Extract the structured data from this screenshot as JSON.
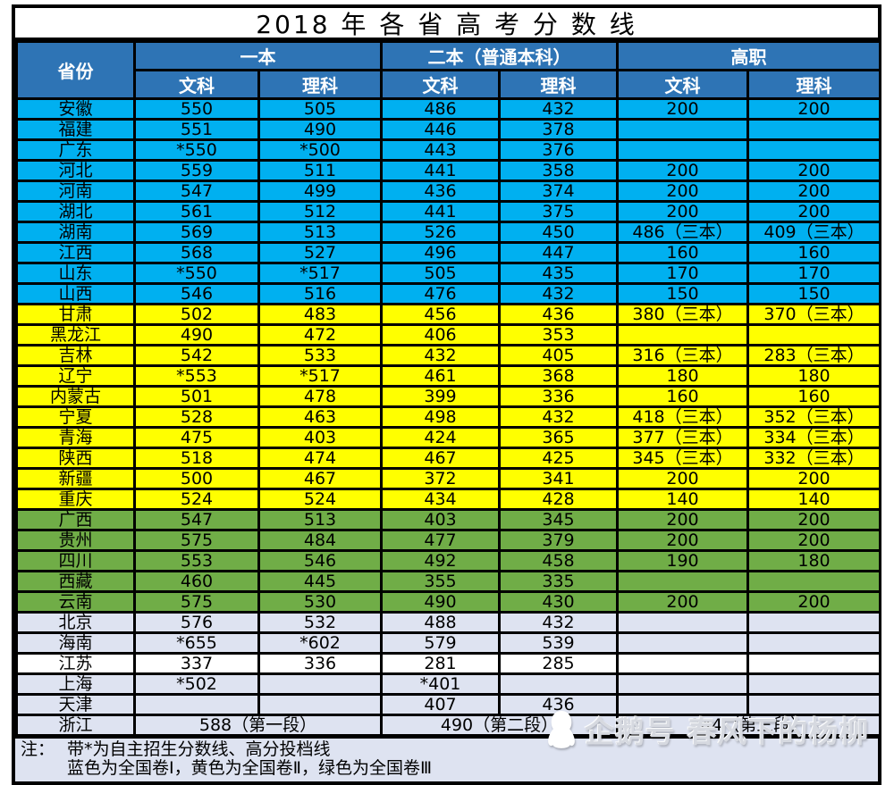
{
  "chart_data": {
    "type": "table",
    "title": "2018 年 各 省 高 考 分 数 线",
    "column_groups": [
      {
        "label": "一本",
        "subs": [
          "文科",
          "理科"
        ]
      },
      {
        "label": "二本（普通本科）",
        "subs": [
          "文科",
          "理科"
        ]
      },
      {
        "label": "高职",
        "subs": [
          "文科",
          "理科"
        ]
      }
    ],
    "columns": [
      "省份",
      "一本文科",
      "一本理科",
      "二本文科",
      "二本理科",
      "高职文科",
      "高职理科"
    ],
    "rows": [
      {
        "province": "安徽",
        "color": "blue",
        "cells": [
          "550",
          "505",
          "486",
          "432",
          "200",
          "200"
        ]
      },
      {
        "province": "福建",
        "color": "blue",
        "cells": [
          "551",
          "490",
          "446",
          "378",
          "",
          ""
        ]
      },
      {
        "province": "广东",
        "color": "blue",
        "cells": [
          "*550",
          "*500",
          "443",
          "376",
          "",
          ""
        ]
      },
      {
        "province": "河北",
        "color": "blue",
        "cells": [
          "559",
          "511",
          "441",
          "358",
          "200",
          "200"
        ]
      },
      {
        "province": "河南",
        "color": "blue",
        "cells": [
          "547",
          "499",
          "436",
          "374",
          "200",
          "200"
        ]
      },
      {
        "province": "湖北",
        "color": "blue",
        "cells": [
          "561",
          "512",
          "441",
          "375",
          "200",
          "200"
        ]
      },
      {
        "province": "湖南",
        "color": "blue",
        "cells": [
          "569",
          "513",
          "526",
          "450",
          "486（三本）",
          "409（三本）"
        ]
      },
      {
        "province": "江西",
        "color": "blue",
        "cells": [
          "568",
          "527",
          "496",
          "447",
          "160",
          "160"
        ]
      },
      {
        "province": "山东",
        "color": "blue",
        "cells": [
          "*550",
          "*517",
          "505",
          "435",
          "170",
          "170"
        ]
      },
      {
        "province": "山西",
        "color": "blue",
        "cells": [
          "546",
          "516",
          "476",
          "432",
          "150",
          "150"
        ]
      },
      {
        "province": "甘肃",
        "color": "yellow",
        "cells": [
          "502",
          "483",
          "456",
          "436",
          "380（三本）",
          "370（三本）"
        ]
      },
      {
        "province": "黑龙江",
        "color": "yellow",
        "cells": [
          "490",
          "472",
          "406",
          "353",
          "",
          ""
        ]
      },
      {
        "province": "吉林",
        "color": "yellow",
        "cells": [
          "542",
          "533",
          "432",
          "405",
          "316（三本）",
          "283（三本）"
        ]
      },
      {
        "province": "辽宁",
        "color": "yellow",
        "cells": [
          "*553",
          "*517",
          "461",
          "368",
          "180",
          "180"
        ]
      },
      {
        "province": "内蒙古",
        "color": "yellow",
        "cells": [
          "501",
          "478",
          "399",
          "336",
          "160",
          "160"
        ]
      },
      {
        "province": "宁夏",
        "color": "yellow",
        "cells": [
          "528",
          "463",
          "498",
          "432",
          "418（三本）",
          "352（三本）"
        ]
      },
      {
        "province": "青海",
        "color": "yellow",
        "cells": [
          "475",
          "403",
          "424",
          "365",
          "377（三本）",
          "334（三本）"
        ]
      },
      {
        "province": "陕西",
        "color": "yellow",
        "cells": [
          "518",
          "474",
          "467",
          "425",
          "345（三本）",
          "332（三本）"
        ]
      },
      {
        "province": "新疆",
        "color": "yellow",
        "cells": [
          "500",
          "467",
          "372",
          "341",
          "200",
          "200"
        ]
      },
      {
        "province": "重庆",
        "color": "yellow",
        "cells": [
          "524",
          "524",
          "434",
          "428",
          "140",
          "140"
        ]
      },
      {
        "province": "广西",
        "color": "green",
        "cells": [
          "547",
          "513",
          "403",
          "345",
          "200",
          "200"
        ]
      },
      {
        "province": "贵州",
        "color": "green",
        "cells": [
          "575",
          "484",
          "477",
          "379",
          "200",
          "200"
        ]
      },
      {
        "province": "四川",
        "color": "green",
        "cells": [
          "553",
          "546",
          "492",
          "458",
          "190",
          "180"
        ]
      },
      {
        "province": "西藏",
        "color": "green",
        "cells": [
          "460",
          "445",
          "355",
          "335",
          "",
          ""
        ]
      },
      {
        "province": "云南",
        "color": "green",
        "cells": [
          "575",
          "530",
          "490",
          "430",
          "200",
          "200"
        ]
      },
      {
        "province": "北京",
        "color": "light",
        "cells": [
          "576",
          "532",
          "488",
          "432",
          "",
          ""
        ]
      },
      {
        "province": "海南",
        "color": "light",
        "cells": [
          "*655",
          "*602",
          "579",
          "539",
          "",
          ""
        ]
      },
      {
        "province": "江苏",
        "color": "white",
        "cells": [
          "337",
          "336",
          "281",
          "285",
          "",
          ""
        ]
      },
      {
        "province": "上海",
        "color": "light",
        "cells": [
          "*502",
          "",
          "*401",
          "",
          "",
          ""
        ]
      },
      {
        "province": "天津",
        "color": "light",
        "cells": [
          "",
          "",
          "407",
          "436",
          "",
          ""
        ]
      },
      {
        "province": "浙江",
        "color": "light",
        "spans": [
          {
            "text": "588（第一段）",
            "span": 2
          },
          {
            "text": "490（第二段）",
            "span": 2
          },
          {
            "text": "344（第三段）",
            "span": 2
          }
        ]
      }
    ],
    "row_color_legend": {
      "blue": "全国卷Ⅰ",
      "yellow": "全国卷Ⅱ",
      "green": "全国卷Ⅲ"
    }
  },
  "header": {
    "province": "省份"
  },
  "colors": {
    "header_blue": "#2E74B5",
    "row_blue": "#00B0F0",
    "row_yellow": "#FFFF00",
    "row_green": "#70AD47",
    "row_light": "#DEE3F1",
    "row_white": "#FFFFFF",
    "border": "#000000"
  },
  "note": {
    "prefix": "注：",
    "line1": "带*为自主招生分数线、高分投档线",
    "line2": "蓝色为全国卷Ⅰ，黄色为全国卷Ⅱ，绿色为全国卷Ⅲ"
  },
  "watermark": {
    "icon": "penguin-icon",
    "text": "企鹅号 春风下的杨柳"
  }
}
